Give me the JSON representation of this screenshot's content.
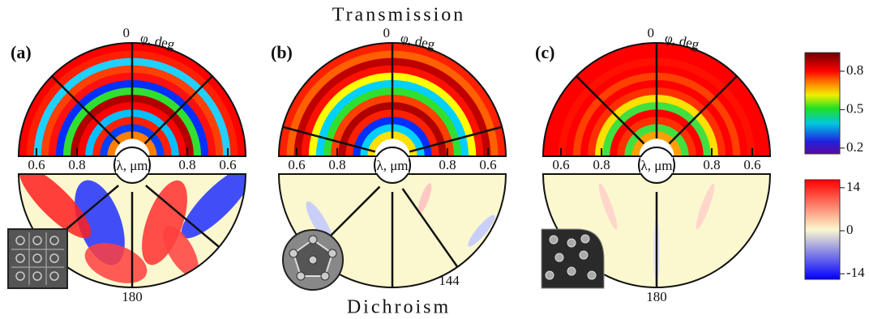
{
  "figure": {
    "top_title": "Transmission",
    "bottom_title": "Dichroism",
    "panels": [
      {
        "label": "(a)",
        "phi_top": 0,
        "phi_label": "φ, deg",
        "lambda_ticks": [
          0.6,
          0.8
        ],
        "lambda_label": "λ, μm",
        "phi_bottom": 180
      },
      {
        "label": "(b)",
        "phi_top": 0,
        "phi_label": "φ, deg",
        "lambda_ticks": [
          0.6,
          0.8
        ],
        "lambda_label": "λ, μm",
        "phi_bottom": 144
      },
      {
        "label": "(c)",
        "phi_top": 0,
        "phi_label": "φ, deg",
        "lambda_ticks": [
          0.6,
          0.8
        ],
        "lambda_label": "λ, μm",
        "phi_bottom": 180
      }
    ],
    "colorbars": [
      {
        "range": [
          0.155,
          0.945
        ],
        "ticks": [
          0.8,
          0.5,
          0.2
        ]
      },
      {
        "range": [
          -15.8,
          16.6
        ],
        "ticks": [
          14,
          0,
          -14
        ]
      }
    ]
  }
}
